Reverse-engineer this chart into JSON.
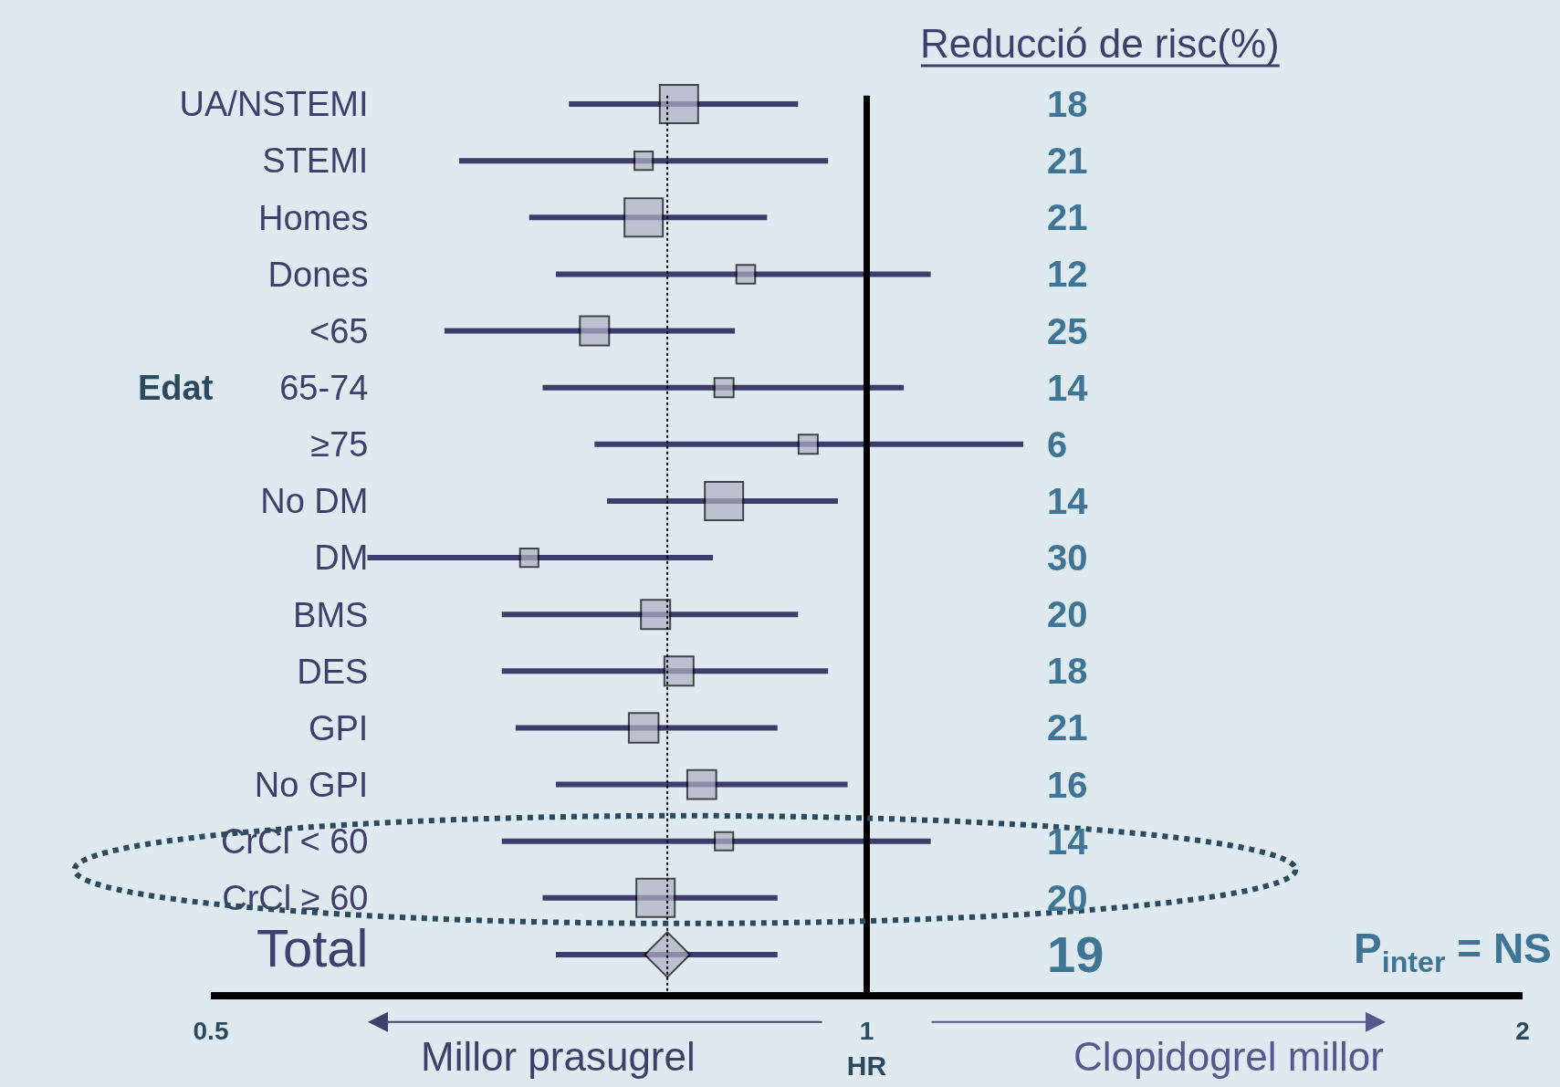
{
  "chart_data": {
    "type": "bubble",
    "orientation": "horizontal",
    "categories": [
      "UA/NSTEMI",
      "STEMI",
      "Homes",
      "Dones",
      "<65",
      "65-74",
      "≥75",
      "No DM",
      "DM",
      "BMS",
      "DES",
      "GPI",
      "No GPI",
      "CrCl < 60",
      "CrCl ≥ 60",
      "Total"
    ],
    "series": [
      {
        "type": "bubble",
        "marker": "square",
        "color": "#b0b0c4",
        "values": [
          0.82,
          0.79,
          0.79,
          0.88,
          0.75,
          0.86,
          0.94,
          0.86,
          0.7,
          0.8,
          0.82,
          0.79,
          0.84,
          0.86,
          0.8,
          null
        ],
        "errors": [
          [
            0.73,
            0.93
          ],
          [
            0.65,
            0.96
          ],
          [
            0.7,
            0.9
          ],
          [
            0.72,
            1.07
          ],
          [
            0.64,
            0.87
          ],
          [
            0.71,
            1.04
          ],
          [
            0.75,
            1.18
          ],
          [
            0.76,
            0.97
          ],
          [
            0.59,
            0.85
          ],
          [
            0.68,
            0.93
          ],
          [
            0.68,
            0.96
          ],
          [
            0.69,
            0.91
          ],
          [
            0.72,
            0.98
          ],
          [
            0.68,
            1.07
          ],
          [
            0.71,
            0.91
          ],
          null
        ],
        "sizes": [
          1,
          0.23,
          1,
          0.24,
          0.58,
          0.25,
          0.25,
          1,
          0.23,
          0.58,
          0.58,
          0.6,
          0.57,
          0.23,
          1,
          null
        ]
      },
      {
        "type": "scatter",
        "marker": "diamond",
        "color": "#b0b0c4",
        "values": [
          null,
          null,
          null,
          null,
          null,
          null,
          null,
          null,
          null,
          null,
          null,
          null,
          null,
          null,
          null,
          0.81
        ],
        "errors": [
          null,
          null,
          null,
          null,
          null,
          null,
          null,
          null,
          null,
          null,
          null,
          null,
          null,
          null,
          null,
          [
            0.72,
            0.91
          ]
        ]
      }
    ],
    "xlim": [
      0.5,
      2
    ],
    "xticks": [
      0.5,
      1,
      2
    ],
    "log": "x",
    "xlabel": "HR",
    "ref_lines": [
      {
        "axis": "x",
        "value": 1,
        "color": "#000000",
        "line_style": "solid"
      },
      {
        "axis": "x",
        "value": 0.81,
        "color": "#000000",
        "line_style": "dotted"
      }
    ],
    "annotations": [
      "Reducció de risc(%)",
      "18",
      "21",
      "21",
      "12",
      "25",
      "14",
      "6",
      "14",
      "30",
      "20",
      "18",
      "21",
      "16",
      "14",
      "20",
      "19",
      "Edat",
      "P$_{inter}$ = NS",
      "Millor prasugrel",
      "Clopidogrel millor"
    ],
    "grid": false
  }
}
